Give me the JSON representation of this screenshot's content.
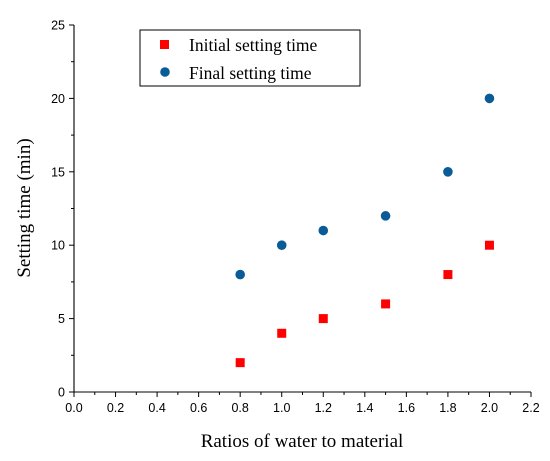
{
  "chart_data": {
    "type": "scatter",
    "xlabel": "Ratios of water to material",
    "ylabel": "Setting time (min)",
    "xlim": [
      0.0,
      2.2
    ],
    "ylim": [
      0,
      25
    ],
    "x_ticks": [
      "0.0",
      "0.2",
      "0.4",
      "0.6",
      "0.8",
      "1.0",
      "1.2",
      "1.4",
      "1.6",
      "1.8",
      "2.0",
      "2.2"
    ],
    "y_ticks": [
      "0",
      "5",
      "10",
      "15",
      "20",
      "25"
    ],
    "grid": false,
    "legend_position": "top-left",
    "series": [
      {
        "name": "Initial setting time",
        "marker": "square",
        "color": "#ff0000",
        "x": [
          0.8,
          1.0,
          1.2,
          1.5,
          1.8,
          2.0
        ],
        "y": [
          2,
          4,
          5,
          6,
          8,
          10
        ]
      },
      {
        "name": "Final setting time",
        "marker": "circle",
        "color": "#0a5c97",
        "x": [
          0.8,
          1.0,
          1.2,
          1.5,
          1.8,
          2.0
        ],
        "y": [
          8,
          10,
          11,
          12,
          15,
          20
        ]
      }
    ]
  }
}
